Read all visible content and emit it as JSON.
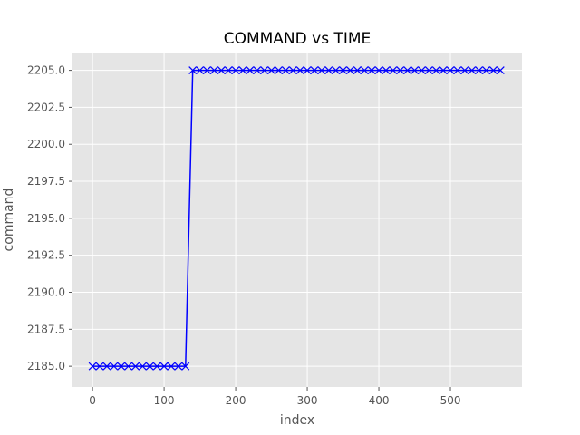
{
  "chart_data": {
    "type": "line",
    "title": "COMMAND vs TIME",
    "xlabel": "index",
    "ylabel": "command",
    "xlim": [
      -28,
      600
    ],
    "ylim": [
      2183.6,
      2206.2
    ],
    "xticks": [
      0,
      100,
      200,
      300,
      400,
      500
    ],
    "yticks": [
      2185.0,
      2187.5,
      2190.0,
      2192.5,
      2195.0,
      2197.5,
      2200.0,
      2202.5,
      2205.0
    ],
    "xtick_labels": [
      "0",
      "100",
      "200",
      "300",
      "400",
      "500"
    ],
    "ytick_labels": [
      "2185.0",
      "2187.5",
      "2190.0",
      "2192.5",
      "2195.0",
      "2197.5",
      "2200.0",
      "2202.5",
      "2205.0"
    ],
    "grid": true,
    "background": "#e5e5e5",
    "line_color": "#0000ff",
    "marker": "x",
    "series": [
      {
        "x": [
          0,
          10,
          20,
          30,
          40,
          50,
          60,
          70,
          80,
          90,
          100,
          110,
          120,
          130,
          140,
          150,
          160,
          170,
          180,
          190,
          200,
          210,
          220,
          230,
          240,
          250,
          260,
          270,
          280,
          290,
          300,
          310,
          320,
          330,
          340,
          350,
          360,
          370,
          380,
          390,
          400,
          410,
          420,
          430,
          440,
          450,
          460,
          470,
          480,
          490,
          500,
          510,
          520,
          530,
          540,
          550,
          560,
          570
        ],
        "values": [
          2185,
          2185,
          2185,
          2185,
          2185,
          2185,
          2185,
          2185,
          2185,
          2185,
          2185,
          2185,
          2185,
          2185,
          2205,
          2205,
          2205,
          2205,
          2205,
          2205,
          2205,
          2205,
          2205,
          2205,
          2205,
          2205,
          2205,
          2205,
          2205,
          2205,
          2205,
          2205,
          2205,
          2205,
          2205,
          2205,
          2205,
          2205,
          2205,
          2205,
          2205,
          2205,
          2205,
          2205,
          2205,
          2205,
          2205,
          2205,
          2205,
          2205,
          2205,
          2205,
          2205,
          2205,
          2205,
          2205,
          2205,
          2205
        ]
      }
    ]
  }
}
